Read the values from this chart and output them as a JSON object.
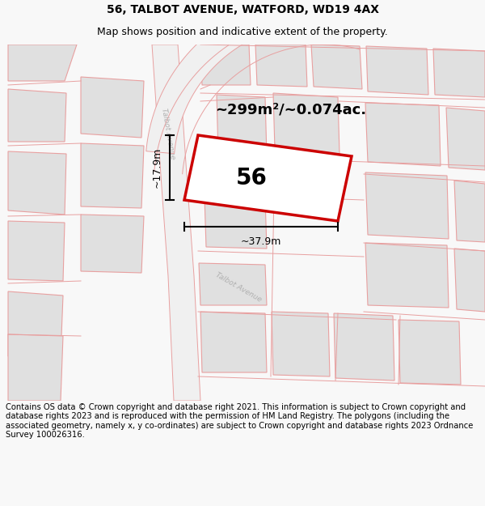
{
  "title_line1": "56, TALBOT AVENUE, WATFORD, WD19 4AX",
  "title_line2": "Map shows position and indicative extent of the property.",
  "footer_text": "Contains OS data © Crown copyright and database right 2021. This information is subject to Crown copyright and database rights 2023 and is reproduced with the permission of HM Land Registry. The polygons (including the associated geometry, namely x, y co-ordinates) are subject to Crown copyright and database rights 2023 Ordnance Survey 100026316.",
  "area_label": "~299m²/~0.074ac.",
  "width_label": "~37.9m",
  "height_label": "~17.9m",
  "number_label": "56",
  "bg_color": "#f8f8f8",
  "map_bg": "#ffffff",
  "building_fc": "#e0e0e0",
  "building_ec": "#e8a0a0",
  "road_fc": "#f0f0f0",
  "road_ec": "#e8a0a0",
  "plot_ec": "#cc0000",
  "street_color": "#b0b0b0",
  "title_fontsize": 10,
  "subtitle_fontsize": 9,
  "footer_fontsize": 7.2,
  "area_fontsize": 13,
  "number_fontsize": 20,
  "dim_fontsize": 9
}
